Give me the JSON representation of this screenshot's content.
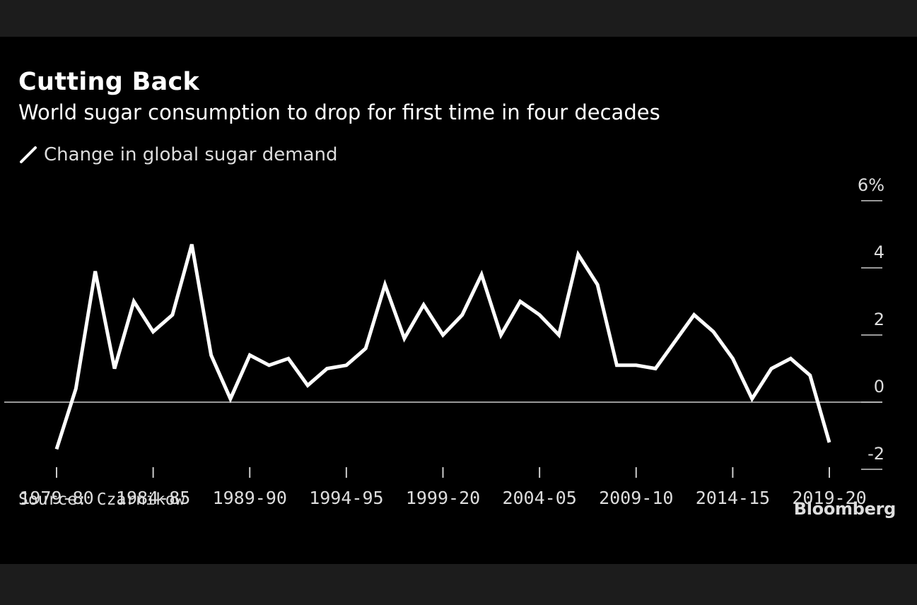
{
  "header": {
    "title": "Cutting Back",
    "subtitle": "World sugar consumption to drop for first time in four decades"
  },
  "legend": {
    "label": "Change in global sugar demand"
  },
  "footer": {
    "source": "Source: Czarnikow",
    "brand": "Bloomberg"
  },
  "colors": {
    "background": "#000000",
    "line": "#ffffff",
    "text": "#dddddd"
  },
  "chart_data": {
    "type": "line",
    "title": "Cutting Back",
    "subtitle": "World sugar consumption to drop for first time in four decades",
    "series": [
      {
        "name": "Change in global sugar demand",
        "x": [
          "1979-80",
          "1980-81",
          "1981-82",
          "1982-83",
          "1983-84",
          "1984-85",
          "1985-86",
          "1986-87",
          "1987-88",
          "1988-89",
          "1989-90",
          "1990-91",
          "1991-92",
          "1992-93",
          "1993-94",
          "1994-95",
          "1995-96",
          "1996-97",
          "1997-98",
          "1998-99",
          "1999-20",
          "2000-01",
          "2001-02",
          "2002-03",
          "2003-04",
          "2004-05",
          "2005-06",
          "2006-07",
          "2007-08",
          "2008-09",
          "2009-10",
          "2010-11",
          "2011-12",
          "2012-13",
          "2013-14",
          "2014-15",
          "2015-16",
          "2016-17",
          "2017-18",
          "2018-19",
          "2019-20"
        ],
        "values": [
          -1.4,
          0.4,
          3.9,
          1.0,
          3.0,
          2.1,
          2.6,
          4.7,
          1.4,
          0.1,
          1.4,
          1.1,
          1.3,
          0.5,
          1.0,
          1.1,
          1.6,
          3.5,
          1.9,
          2.9,
          2.0,
          2.6,
          3.8,
          2.0,
          3.0,
          2.6,
          2.0,
          4.4,
          3.5,
          1.1,
          1.1,
          1.0,
          1.8,
          2.6,
          2.1,
          1.3,
          0.1,
          1.0,
          1.3,
          0.8,
          -1.2
        ]
      }
    ],
    "x_tick_labels": [
      "1979-80",
      "1984-85",
      "1989-90",
      "1994-95",
      "1999-20",
      "2004-05",
      "2009-10",
      "2014-15",
      "2019-20"
    ],
    "y_ticks": [
      {
        "value": 6,
        "label": "6%"
      },
      {
        "value": 4,
        "label": "4"
      },
      {
        "value": 2,
        "label": "2"
      },
      {
        "value": 0,
        "label": "0"
      },
      {
        "value": -2,
        "label": "-2"
      }
    ],
    "ylim": [
      -2,
      6
    ],
    "zero_line": true,
    "grid": false,
    "legend_position": "top-left"
  }
}
